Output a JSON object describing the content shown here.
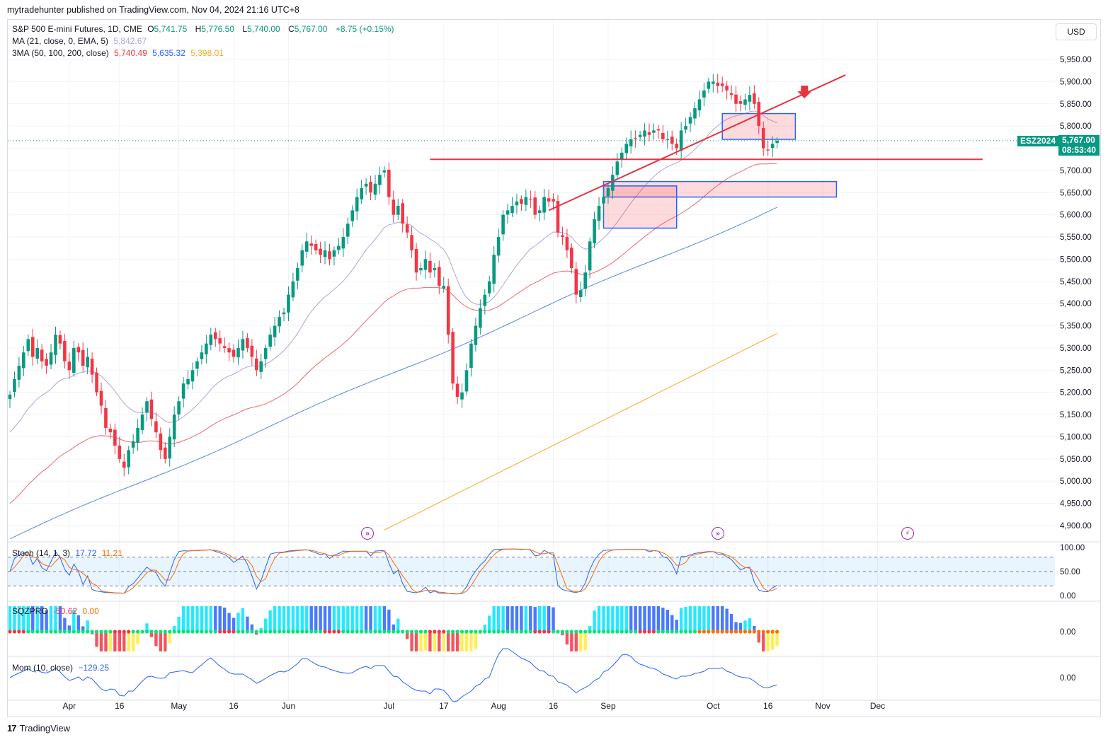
{
  "header": {
    "caption": "mytradehunter published on TradingView.com, Nov 04, 2024 21:16 UTC+8"
  },
  "legend": {
    "main_title": "S&P 500 E-mini Futures, 1D, CME",
    "o_label": "O",
    "o_value": "5,741.75",
    "h_label": "H",
    "h_value": "5,776.50",
    "l_label": "L",
    "l_value": "5,740.00",
    "c_label": "C",
    "c_value": "5,767.00",
    "change": "+8.75 (+0.15%)",
    "ma_label": "MA (21, close, 0, EMA, 5)",
    "ma_value": "5,842.67",
    "ma3_label": "3MA (50, 100, 200, close)",
    "ma50": "5,740.49",
    "ma100": "5,635.32",
    "ma200": "5,398.01"
  },
  "currency": "USD",
  "price_tag": {
    "symbol": "ESZ2024",
    "price": "5,767.00",
    "countdown": "08:53:40"
  },
  "stoch": {
    "label": "Stoch (14, 1, 3)",
    "k": "17.72",
    "d": "11.21"
  },
  "sqz": {
    "label": "SQZPRO",
    "v1": "-50.62",
    "v2": "0.00"
  },
  "mom": {
    "label": "Mom (10, close)",
    "v": "−129.25"
  },
  "footer": {
    "brand": "TradingView"
  },
  "colors": {
    "up": "#089981",
    "down": "#f23645",
    "ma21": "#b2a3d8",
    "ma50": "#f0676f",
    "ma100": "#5b84f1",
    "ma200": "#f9a825",
    "annot": "#e5333f",
    "box": "#2962ff"
  },
  "chart_data": {
    "type": "candlestick",
    "title": "S&P 500 E-mini Futures, 1D, CME",
    "y_ticks": [
      "5,950.00",
      "5,900.00",
      "5,850.00",
      "5,800.00",
      "5,750.00",
      "5,700.00",
      "5,650.00",
      "5,600.00",
      "5,550.00",
      "5,500.00",
      "5,450.00",
      "5,400.00",
      "5,350.00",
      "5,300.00",
      "5,250.00",
      "5,200.00",
      "5,150.00",
      "5,100.00",
      "5,050.00",
      "5,000.00",
      "4,950.00",
      "4,900.00"
    ],
    "y_tick_values": [
      5950,
      5900,
      5850,
      5800,
      5750,
      5700,
      5650,
      5600,
      5550,
      5500,
      5450,
      5400,
      5350,
      5300,
      5250,
      5200,
      5150,
      5100,
      5050,
      5000,
      4950,
      4900
    ],
    "x_labels": [
      "Apr",
      "16",
      "May",
      "16",
      "Jun",
      "Jul",
      "17",
      "Aug",
      "16",
      "Sep",
      "Oct",
      "16",
      "Nov",
      "Dec"
    ],
    "x_label_days": [
      13,
      24,
      37,
      49,
      61,
      83,
      95,
      107,
      119,
      131,
      154,
      166,
      178,
      190
    ],
    "close_series": [
      5195,
      5230,
      5260,
      5290,
      5320,
      5280,
      5300,
      5270,
      5260,
      5290,
      5330,
      5310,
      5270,
      5250,
      5300,
      5290,
      5260,
      5280,
      5240,
      5200,
      5170,
      5120,
      5110,
      5080,
      5050,
      5030,
      5070,
      5090,
      5120,
      5150,
      5180,
      5140,
      5110,
      5070,
      5050,
      5100,
      5150,
      5180,
      5220,
      5230,
      5250,
      5270,
      5290,
      5310,
      5330,
      5320,
      5310,
      5300,
      5290,
      5280,
      5300,
      5320,
      5300,
      5280,
      5250,
      5270,
      5300,
      5330,
      5350,
      5370,
      5380,
      5420,
      5450,
      5480,
      5520,
      5540,
      5530,
      5520,
      5510,
      5520,
      5500,
      5520,
      5530,
      5550,
      5580,
      5610,
      5640,
      5660,
      5670,
      5650,
      5670,
      5690,
      5700,
      5640,
      5600,
      5620,
      5580,
      5560,
      5520,
      5470,
      5480,
      5500,
      5470,
      5480,
      5440,
      5440,
      5330,
      5220,
      5190,
      5200,
      5250,
      5310,
      5350,
      5390,
      5420,
      5450,
      5510,
      5550,
      5600,
      5610,
      5620,
      5630,
      5625,
      5640,
      5635,
      5600,
      5610,
      5640,
      5630,
      5630,
      5560,
      5550,
      5520,
      5480,
      5420,
      5430,
      5470,
      5540,
      5590,
      5620,
      5640,
      5660,
      5690,
      5720,
      5740,
      5760,
      5770,
      5770,
      5780,
      5790,
      5780,
      5790,
      5790,
      5770,
      5770,
      5760,
      5750,
      5790,
      5800,
      5820,
      5840,
      5860,
      5880,
      5900,
      5900,
      5890,
      5890,
      5880,
      5870,
      5850,
      5850,
      5860,
      5870,
      5850,
      5800,
      5750,
      5745,
      5760,
      5767
    ],
    "ma21": "5,842.67",
    "ma50": "5,740.49",
    "ma100": "5,635.32",
    "ma200": "5,398.01",
    "resistance_level": 5725,
    "zones": [
      {
        "from": 5640,
        "to": 5675
      }
    ],
    "stoch_ticks": [
      "100.00",
      "50.00",
      "0.00"
    ],
    "stoch_levels": [
      80,
      20
    ],
    "sqz_tick": "0.00",
    "mom_tick": "0.00"
  }
}
